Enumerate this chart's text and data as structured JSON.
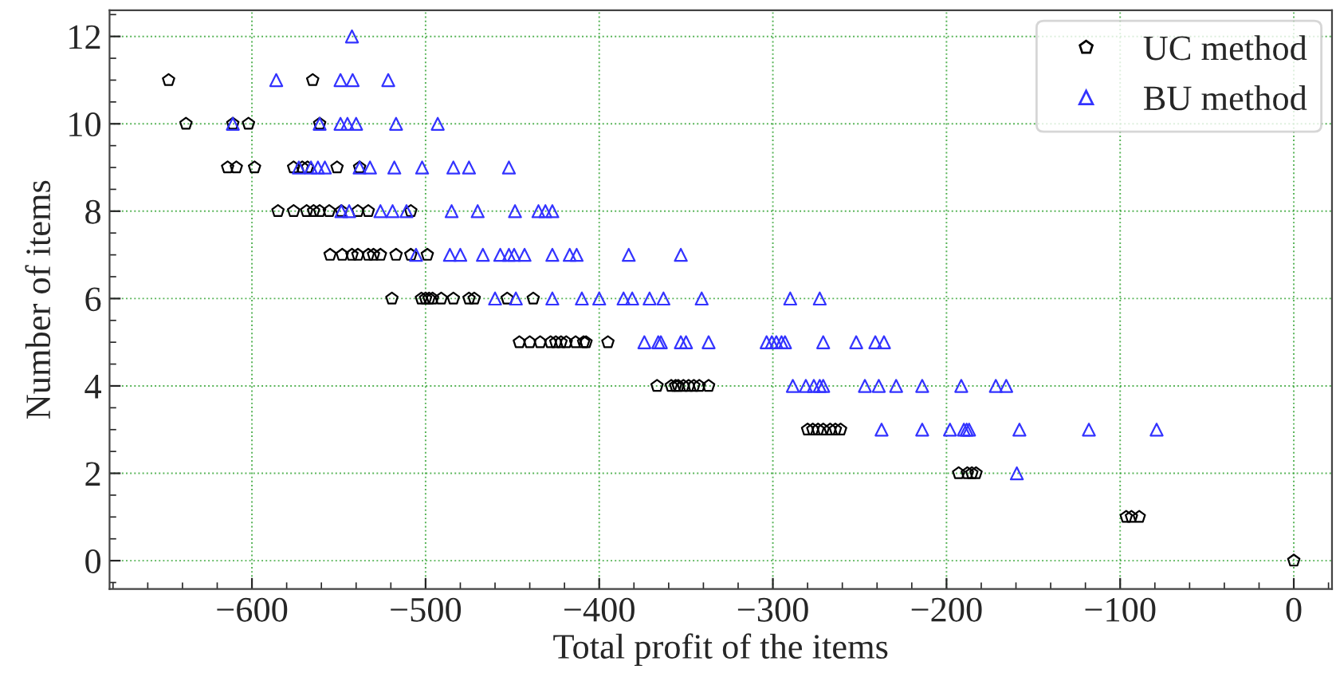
{
  "chart_data": {
    "type": "scatter",
    "xlabel": "Total profit of the items",
    "ylabel": "Number of items",
    "xlim": [
      -682,
      22
    ],
    "ylim": [
      -0.65,
      12.6
    ],
    "xticks": [
      -600,
      -500,
      -400,
      -300,
      -200,
      -100,
      0
    ],
    "yticks": [
      0,
      2,
      4,
      6,
      8,
      10,
      12
    ],
    "grid": true,
    "legend": "top right",
    "series": [
      {
        "name": "UC method",
        "color": "#000000",
        "x": [
          -648,
          -565,
          -638,
          -611,
          -602,
          -561,
          -614,
          -609,
          -598.5,
          -576,
          -571,
          -568,
          -551,
          -538,
          -585,
          -576,
          -568.5,
          -564.5,
          -561,
          -555.5,
          -548.5,
          -539,
          -533,
          -508.5,
          -555,
          -548,
          -542.4,
          -539,
          -533,
          -530,
          -526,
          -517,
          -508.5,
          -499,
          -519.4,
          -502.4,
          -500,
          -498,
          -496,
          -491,
          -484,
          -475,
          -472,
          -453,
          -438,
          -446,
          -440,
          -434,
          -428,
          -425,
          -422,
          -419,
          -413.6,
          -409,
          -407.6,
          -395,
          -366.7,
          -358.5,
          -356,
          -354.5,
          -351.5,
          -348.5,
          -345.5,
          -342.4,
          -337,
          -280,
          -277,
          -274,
          -271,
          -267,
          -264,
          -261,
          -193,
          -188,
          -185.4,
          -183,
          -96.5,
          -93.5,
          -89,
          0
        ],
        "values": [
          11,
          11,
          10,
          10,
          10,
          10,
          9,
          9,
          9,
          9,
          9,
          9,
          9,
          9,
          8,
          8,
          8,
          8,
          8,
          8,
          8,
          8,
          8,
          8,
          7,
          7,
          7,
          7,
          7,
          7,
          7,
          7,
          7,
          7,
          6,
          6,
          6,
          6,
          6,
          6,
          6,
          6,
          6,
          6,
          6,
          5,
          5,
          5,
          5,
          5,
          5,
          5,
          5,
          5,
          5,
          5,
          4,
          4,
          4,
          4,
          4,
          4,
          4,
          4,
          4,
          3,
          3,
          3,
          3,
          3,
          3,
          3,
          2,
          2,
          2,
          2,
          1,
          1,
          1,
          0
        ]
      },
      {
        "name": "BU method",
        "color": "#3333ff",
        "marker": "triangle",
        "x": [
          -542.4,
          -586,
          -549,
          -542,
          -521.5,
          -611,
          -561,
          -549,
          -545,
          -540,
          -517,
          -493,
          -573,
          -566,
          -562,
          -558,
          -538,
          -532,
          -518,
          -502,
          -484,
          -475,
          -452,
          -548.5,
          -544,
          -526,
          -519,
          -511,
          -485,
          -470,
          -448.5,
          -435,
          -431,
          -427,
          -505.5,
          -486,
          -480,
          -467,
          -457,
          -452,
          -449,
          -443,
          -427,
          -417,
          -413,
          -383,
          -353,
          -460,
          -448,
          -427,
          -410,
          -400,
          -386,
          -381,
          -371,
          -363,
          -341,
          -290,
          -273,
          -374,
          -366,
          -364.5,
          -353,
          -350,
          -337,
          -303.6,
          -300.6,
          -298,
          -295,
          -293,
          -271,
          -252,
          -241,
          -236,
          -288.5,
          -281,
          -276.4,
          -273,
          -271,
          -247,
          -239,
          -229,
          -214,
          -191.5,
          -171.6,
          -165.6,
          -237.4,
          -214,
          -198,
          -190,
          -188.4,
          -187,
          -158,
          -118,
          -79,
          -159.5
        ],
        "values": [
          12,
          11,
          11,
          11,
          11,
          10,
          10,
          10,
          10,
          10,
          10,
          10,
          9,
          9,
          9,
          9,
          9,
          9,
          9,
          9,
          9,
          9,
          9,
          8,
          8,
          8,
          8,
          8,
          8,
          8,
          8,
          8,
          8,
          8,
          7,
          7,
          7,
          7,
          7,
          7,
          7,
          7,
          7,
          7,
          7,
          7,
          7,
          6,
          6,
          6,
          6,
          6,
          6,
          6,
          6,
          6,
          6,
          6,
          6,
          5,
          5,
          5,
          5,
          5,
          5,
          5,
          5,
          5,
          5,
          5,
          5,
          5,
          5,
          5,
          4,
          4,
          4,
          4,
          4,
          4,
          4,
          4,
          4,
          4,
          4,
          4,
          3,
          3,
          3,
          3,
          3,
          3,
          3,
          3,
          3,
          2
        ]
      }
    ]
  }
}
